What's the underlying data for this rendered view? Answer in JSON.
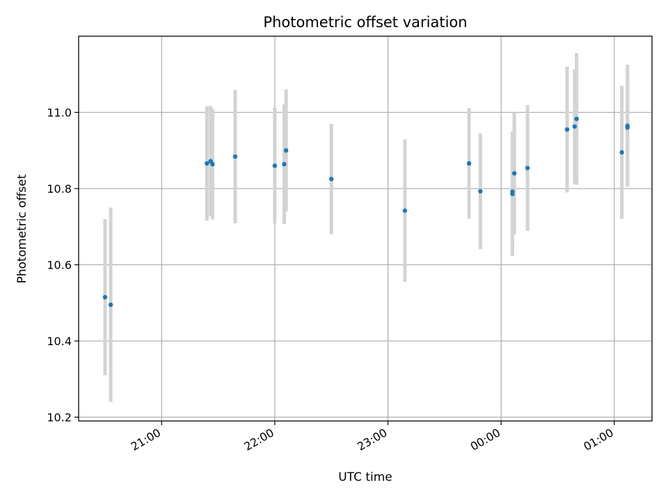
{
  "chart_data": {
    "type": "scatter",
    "title": "Photometric offset variation",
    "xlabel": "UTC time",
    "ylabel": "Photometric offset",
    "x_ticks": [
      "21:00",
      "22:00",
      "23:00",
      "00:00",
      "01:00"
    ],
    "y_ticks": [
      "10.2",
      "10.4",
      "10.6",
      "10.8",
      "11.0"
    ],
    "y_tick_values": [
      10.2,
      10.4,
      10.6,
      10.8,
      11.0
    ],
    "ylim": [
      10.19,
      11.2
    ],
    "xlim": [
      "20:16",
      "01:20"
    ],
    "grid": true,
    "point_color": "#1f77b4",
    "errorbar_color": "#d3d3d3",
    "points": [
      {
        "time": "20:30",
        "y": 10.515,
        "err": 0.205
      },
      {
        "time": "20:33",
        "y": 10.495,
        "err": 0.255
      },
      {
        "time": "21:24",
        "y": 10.866,
        "err": 0.15
      },
      {
        "time": "21:26",
        "y": 10.872,
        "err": 0.145
      },
      {
        "time": "21:27",
        "y": 10.864,
        "err": 0.145
      },
      {
        "time": "21:39",
        "y": 10.884,
        "err": 0.175
      },
      {
        "time": "22:00",
        "y": 10.86,
        "err": 0.152
      },
      {
        "time": "22:05",
        "y": 10.864,
        "err": 0.157
      },
      {
        "time": "22:06",
        "y": 10.9,
        "err": 0.16
      },
      {
        "time": "22:30",
        "y": 10.825,
        "err": 0.145
      },
      {
        "time": "23:09",
        "y": 10.742,
        "err": 0.187
      },
      {
        "time": "23:43",
        "y": 10.866,
        "err": 0.145
      },
      {
        "time": "23:49",
        "y": 10.793,
        "err": 0.152
      },
      {
        "time": "00:06",
        "y": 10.792,
        "err": 0.158
      },
      {
        "time": "00:06",
        "y": 10.786,
        "err": 0.163
      },
      {
        "time": "00:07",
        "y": 10.84,
        "err": 0.16
      },
      {
        "time": "00:14",
        "y": 10.854,
        "err": 0.165
      },
      {
        "time": "00:35",
        "y": 10.955,
        "err": 0.165
      },
      {
        "time": "00:39",
        "y": 10.963,
        "err": 0.15
      },
      {
        "time": "00:40",
        "y": 10.983,
        "err": 0.173
      },
      {
        "time": "01:04",
        "y": 10.895,
        "err": 0.175
      },
      {
        "time": "01:07",
        "y": 10.965,
        "err": 0.16
      },
      {
        "time": "01:07",
        "y": 10.96,
        "err": 0.15
      }
    ]
  }
}
